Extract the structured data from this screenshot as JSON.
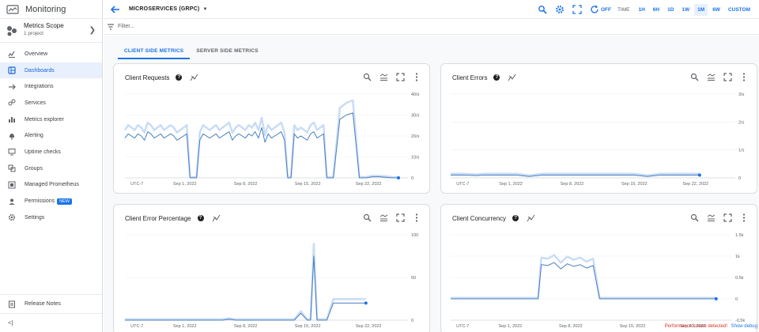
{
  "app": {
    "title": "Monitoring"
  },
  "scope": {
    "name": "Metrics Scope",
    "sub": "1 project"
  },
  "nav": [
    {
      "label": "Overview",
      "icon": "overview-icon"
    },
    {
      "label": "Dashboards",
      "icon": "dashboards-icon",
      "active": true
    },
    {
      "label": "Integrations",
      "icon": "integrations-icon"
    },
    {
      "label": "Services",
      "icon": "services-icon"
    },
    {
      "label": "Metrics explorer",
      "icon": "metrics-explorer-icon"
    },
    {
      "label": "Alerting",
      "icon": "bell-icon"
    },
    {
      "label": "Uptime checks",
      "icon": "monitor-icon"
    },
    {
      "label": "Groups",
      "icon": "groups-icon"
    },
    {
      "label": "Managed Prometheus",
      "icon": "prometheus-icon"
    },
    {
      "label": "Permissions",
      "icon": "person-icon",
      "badge": "NEW"
    },
    {
      "label": "Settings",
      "icon": "gear-icon"
    }
  ],
  "footer": {
    "release_notes": "Release Notes",
    "collapse": "<|"
  },
  "topbar": {
    "dashboard_title": "MICROSERVICES (GRPC)",
    "auto_refresh": "OFF",
    "time_label": "TIME",
    "ranges": [
      "1H",
      "6H",
      "1D",
      "1W",
      "1M",
      "6W",
      "CUSTOM"
    ],
    "selected_range": "1M"
  },
  "filter": {
    "placeholder": "Filter..."
  },
  "tabs": [
    "CLIENT SIDE METRICS",
    "SERVER SIDE METRICS"
  ],
  "accent": "#1a73e8",
  "status": {
    "perf": "Performance issues detected!",
    "debug": "Show debug"
  },
  "chart_data": [
    {
      "type": "line",
      "title": "Client Requests",
      "x_ticks": [
        "UTC-7",
        "Sep 1, 2022",
        "Sep 8, 2022",
        "Sep 15, 2022",
        "Sep 22, 2022"
      ],
      "y_ticks": [
        "40/s",
        "30/s",
        "20/s",
        "10/s",
        "0"
      ],
      "ylim": [
        0,
        40
      ],
      "x": [
        0,
        0.5,
        1,
        1.5,
        2,
        2.5,
        3,
        3.5,
        4,
        4.5,
        5,
        5.5,
        6,
        6.5,
        7,
        7.5,
        8,
        8.5,
        9,
        9.5,
        10,
        10.5,
        11,
        11.5,
        12,
        12.5,
        13,
        13.5,
        14,
        14.5,
        15,
        15.5,
        16,
        16.5,
        17,
        17.5,
        18,
        18.5,
        19,
        19.5,
        20,
        20.5,
        21,
        21.5,
        22,
        22.5,
        23,
        23.5,
        24,
        24.5,
        25,
        25.5,
        26,
        26.5,
        27,
        27.5,
        28,
        28.5,
        29,
        29.5,
        30,
        30.5,
        31,
        31.5,
        32,
        33,
        34,
        35,
        36,
        37,
        38,
        39,
        40,
        41,
        42
      ],
      "values": [
        19,
        21,
        20,
        19,
        21,
        20,
        18,
        22,
        21,
        19,
        20,
        21,
        19,
        20,
        21,
        20,
        18,
        19,
        20,
        21,
        0,
        0,
        0,
        18,
        21,
        20,
        19,
        20,
        21,
        19,
        20,
        21,
        22,
        18,
        20,
        21,
        20,
        19,
        21,
        20,
        22,
        19,
        24,
        17,
        21,
        19,
        20,
        21,
        22,
        18,
        0,
        0,
        21,
        19,
        20,
        19,
        18,
        21,
        22,
        19,
        20,
        21,
        0,
        0,
        0,
        28,
        30,
        31,
        0,
        0,
        0.5,
        0.5,
        0.3,
        0,
        0
      ],
      "color": "#4a7fc1"
    },
    {
      "type": "line",
      "title": "Client Errors",
      "x_ticks": [
        "UTC-7",
        "Sep 1, 2022",
        "Sep 8, 2022",
        "Sep 15, 2022",
        "Sep 22, 2022"
      ],
      "y_ticks": [
        "3/s",
        "2/s",
        "1/s",
        "0"
      ],
      "ylim": [
        0,
        3
      ],
      "x": [
        0,
        2,
        4,
        5,
        6,
        8,
        10,
        12,
        14,
        16,
        18,
        20,
        22,
        24,
        26,
        28,
        30,
        32,
        34,
        36,
        38
      ],
      "values": [
        0.1,
        0.1,
        0.08,
        0.1,
        0.1,
        0.1,
        0.1,
        0.05,
        0.1,
        0.1,
        0.1,
        0.1,
        0.1,
        0.1,
        0.1,
        0.1,
        0.05,
        0.1,
        0.1,
        0.1,
        0.1
      ],
      "color": "#4a7fc1"
    },
    {
      "type": "line",
      "title": "Client Error Percentage",
      "x_ticks": [
        "UTC-7",
        "Sep 1, 2022",
        "Sep 8, 2022",
        "Sep 15, 2022",
        "Sep 22, 2022"
      ],
      "y_ticks": [
        "100",
        "50",
        "0"
      ],
      "ylim": [
        0,
        100
      ],
      "x": [
        0,
        4,
        8,
        12,
        15,
        16,
        17,
        20,
        22,
        24,
        26,
        27,
        28,
        28.5,
        29,
        29.5,
        30,
        31,
        32,
        33,
        34,
        35,
        36,
        37
      ],
      "values": [
        0,
        0,
        0,
        0,
        0,
        1,
        0,
        0,
        0,
        0,
        0,
        8,
        0,
        0,
        75,
        0,
        0,
        0,
        20,
        20,
        20,
        20,
        20,
        20
      ],
      "color": "#4a7fc1"
    },
    {
      "type": "line",
      "title": "Client Concurrency",
      "x_ticks": [
        "UTC-7",
        "Sep 1, 2022",
        "Sep 8, 2022",
        "Sep 15, 2022",
        "Sep 22, 2022"
      ],
      "y_ticks": [
        "1.5k",
        "1k",
        "0.5k",
        "0",
        "-0.5k"
      ],
      "ylim": [
        -500,
        1500
      ],
      "x": [
        0,
        4,
        8,
        12,
        13,
        13.5,
        14,
        15,
        16,
        17,
        18,
        19,
        20,
        21,
        22,
        23,
        24,
        26,
        30,
        34,
        38,
        41
      ],
      "values": [
        0,
        0,
        0,
        0,
        0,
        0,
        800,
        780,
        850,
        700,
        820,
        760,
        800,
        720,
        780,
        0,
        0,
        0,
        0,
        0,
        0,
        0
      ],
      "color": "#4a7fc1"
    }
  ]
}
